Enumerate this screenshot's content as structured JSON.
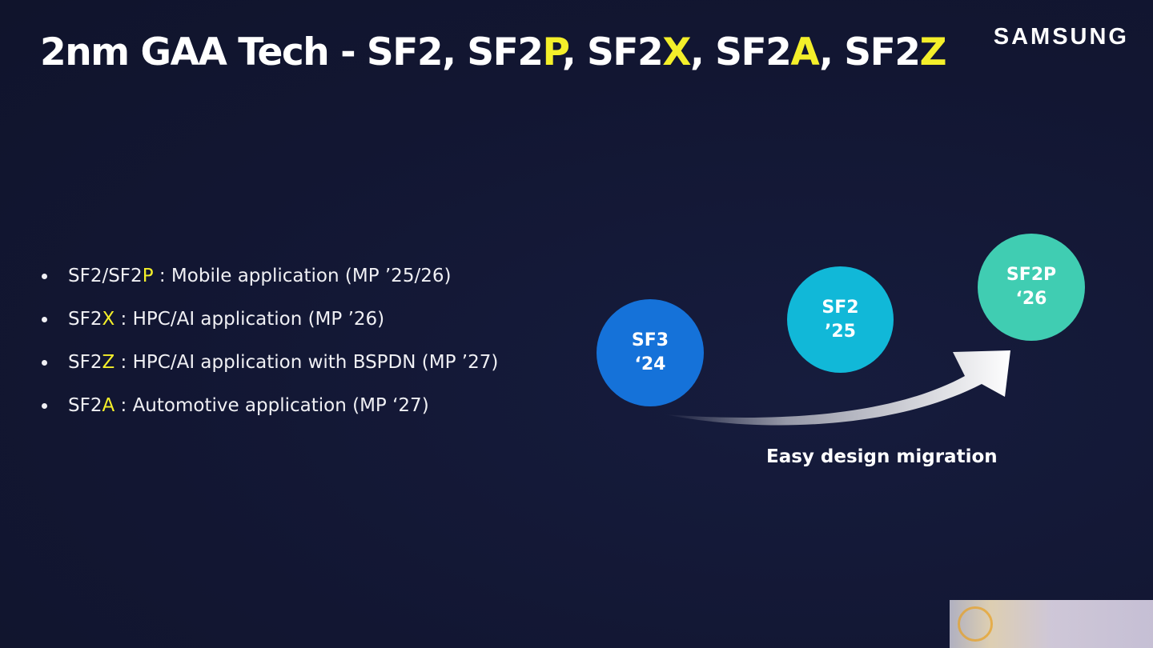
{
  "title": {
    "prefix": "2nm GAA Tech - SF2, SF2",
    "p": "P",
    "comma1": ", SF2",
    "x": "X",
    "comma2": ", SF2",
    "a": "A",
    "comma3": ", SF2",
    "z": "Z"
  },
  "logo": "SAMSUNG",
  "bullets": [
    {
      "base": "SF2/SF2",
      "hl": "P",
      "rest": " : Mobile application (MP ’25/26)"
    },
    {
      "base": "SF2",
      "hl": "X",
      "rest": " : HPC/AI application (MP ’26)"
    },
    {
      "base": "SF2",
      "hl": "Z",
      "rest": " : HPC/AI application with BSPDN (MP ’27)"
    },
    {
      "base": "SF2",
      "hl": "A",
      "rest": " : Automotive application (MP ‘27)"
    }
  ],
  "diagram": {
    "nodes": [
      {
        "name": "SF3",
        "year": "‘24",
        "color": "#1572d9"
      },
      {
        "name": "SF2",
        "year": "’25",
        "color": "#11b8d8"
      },
      {
        "name": "SF2P",
        "year": "‘26",
        "color": "#40cdb2"
      }
    ],
    "arrow_label": "Easy design migration"
  },
  "colors": {
    "background": "#131834",
    "highlight": "#f4ef2a",
    "text": "#ffffff"
  }
}
